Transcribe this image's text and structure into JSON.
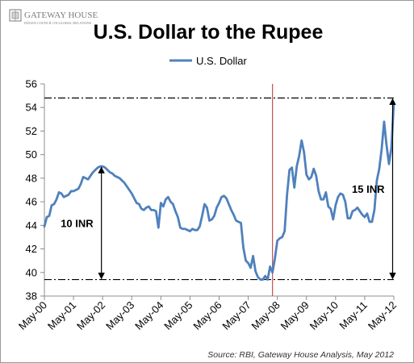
{
  "branding": {
    "logo_text": "GATEWAY HOUSE",
    "logo_subtext": "INDIAN COUNCIL ON GLOBAL RELATIONS"
  },
  "source_note": "Source: RBI, Gateway House Analysis, May 2012",
  "colors": {
    "series": "#4f81bd",
    "vline": "#c0504d",
    "reference": "#000000",
    "logo": "#7a7a7a"
  },
  "chart_data": {
    "type": "line",
    "title": "U.S. Dollar to the Rupee",
    "xlabel": "",
    "ylabel": "",
    "legend": {
      "position": "top",
      "entries": [
        "U.S. Dollar"
      ]
    },
    "grid": false,
    "ylim": [
      38,
      56
    ],
    "yticks": [
      38,
      40,
      42,
      44,
      46,
      48,
      50,
      52,
      54,
      56
    ],
    "xlim": [
      0,
      144
    ],
    "xticks": [
      {
        "m": 0,
        "label": "May-00"
      },
      {
        "m": 12,
        "label": "May-01"
      },
      {
        "m": 24,
        "label": "May-02"
      },
      {
        "m": 36,
        "label": "May-03"
      },
      {
        "m": 48,
        "label": "May-04"
      },
      {
        "m": 60,
        "label": "May-05"
      },
      {
        "m": 72,
        "label": "May-06"
      },
      {
        "m": 84,
        "label": "May-07"
      },
      {
        "m": 96,
        "label": "May-08"
      },
      {
        "m": 108,
        "label": "May-09"
      },
      {
        "m": 120,
        "label": "May-10"
      },
      {
        "m": 132,
        "label": "May-11"
      },
      {
        "m": 144,
        "label": "May-12"
      }
    ],
    "series": [
      {
        "name": "U.S. Dollar",
        "points": [
          [
            0,
            43.9
          ],
          [
            1,
            44.7
          ],
          [
            2,
            44.8
          ],
          [
            3,
            45.7
          ],
          [
            4,
            45.8
          ],
          [
            5,
            46.2
          ],
          [
            6,
            46.8
          ],
          [
            7,
            46.7
          ],
          [
            8,
            46.4
          ],
          [
            9,
            46.5
          ],
          [
            10,
            46.6
          ],
          [
            11,
            46.9
          ],
          [
            12,
            46.9
          ],
          [
            13,
            47.0
          ],
          [
            14,
            47.1
          ],
          [
            15,
            47.5
          ],
          [
            16,
            48.1
          ],
          [
            17,
            48.0
          ],
          [
            18,
            47.9
          ],
          [
            19,
            48.2
          ],
          [
            20,
            48.5
          ],
          [
            21,
            48.7
          ],
          [
            22,
            48.9
          ],
          [
            23,
            49.0
          ],
          [
            24,
            49.0
          ],
          [
            25,
            48.9
          ],
          [
            26,
            48.7
          ],
          [
            27,
            48.5
          ],
          [
            28,
            48.4
          ],
          [
            29,
            48.2
          ],
          [
            30,
            48.1
          ],
          [
            31,
            48.0
          ],
          [
            32,
            47.8
          ],
          [
            33,
            47.6
          ],
          [
            34,
            47.3
          ],
          [
            35,
            47.0
          ],
          [
            36,
            46.7
          ],
          [
            37,
            46.3
          ],
          [
            38,
            45.9
          ],
          [
            39,
            45.8
          ],
          [
            40,
            45.4
          ],
          [
            41,
            45.3
          ],
          [
            42,
            45.5
          ],
          [
            43,
            45.6
          ],
          [
            44,
            45.3
          ],
          [
            45,
            45.3
          ],
          [
            46,
            45.2
          ],
          [
            47,
            43.8
          ],
          [
            48,
            45.9
          ],
          [
            49,
            45.6
          ],
          [
            50,
            46.2
          ],
          [
            51,
            46.4
          ],
          [
            52,
            46.0
          ],
          [
            53,
            45.8
          ],
          [
            54,
            45.2
          ],
          [
            55,
            44.7
          ],
          [
            56,
            43.8
          ],
          [
            57,
            43.7
          ],
          [
            58,
            43.7
          ],
          [
            59,
            43.6
          ],
          [
            60,
            43.5
          ],
          [
            61,
            43.7
          ],
          [
            62,
            43.6
          ],
          [
            63,
            43.6
          ],
          [
            64,
            43.9
          ],
          [
            65,
            44.8
          ],
          [
            66,
            45.8
          ],
          [
            67,
            45.5
          ],
          [
            68,
            44.4
          ],
          [
            69,
            44.5
          ],
          [
            70,
            44.8
          ],
          [
            71,
            45.5
          ],
          [
            72,
            45.9
          ],
          [
            73,
            46.4
          ],
          [
            74,
            46.5
          ],
          [
            75,
            46.3
          ],
          [
            76,
            45.8
          ],
          [
            77,
            45.3
          ],
          [
            78,
            44.9
          ],
          [
            79,
            44.4
          ],
          [
            80,
            44.3
          ],
          [
            81,
            44.2
          ],
          [
            82,
            42.1
          ],
          [
            83,
            41.0
          ],
          [
            84,
            40.8
          ],
          [
            85,
            40.4
          ],
          [
            86,
            41.4
          ],
          [
            87,
            40.1
          ],
          [
            88,
            39.6
          ],
          [
            89,
            39.4
          ],
          [
            90,
            39.4
          ],
          [
            91,
            39.7
          ],
          [
            92,
            39.4
          ],
          [
            93,
            40.5
          ],
          [
            94,
            40.0
          ],
          [
            95,
            41.2
          ],
          [
            96,
            42.7
          ],
          [
            97,
            42.9
          ],
          [
            98,
            43.0
          ],
          [
            99,
            43.5
          ],
          [
            100,
            46.6
          ],
          [
            101,
            48.7
          ],
          [
            102,
            48.9
          ],
          [
            103,
            47.2
          ],
          [
            104,
            49.0
          ],
          [
            105,
            49.9
          ],
          [
            106,
            51.2
          ],
          [
            107,
            50.2
          ],
          [
            108,
            48.3
          ],
          [
            109,
            47.9
          ],
          [
            110,
            48.1
          ],
          [
            111,
            48.8
          ],
          [
            112,
            48.2
          ],
          [
            113,
            46.9
          ],
          [
            114,
            46.2
          ],
          [
            115,
            46.2
          ],
          [
            116,
            46.8
          ],
          [
            117,
            45.6
          ],
          [
            118,
            45.4
          ],
          [
            119,
            44.5
          ],
          [
            120,
            45.7
          ],
          [
            121,
            46.4
          ],
          [
            122,
            46.7
          ],
          [
            123,
            46.6
          ],
          [
            124,
            46.0
          ],
          [
            125,
            44.6
          ],
          [
            126,
            44.6
          ],
          [
            127,
            45.2
          ],
          [
            128,
            45.3
          ],
          [
            129,
            45.5
          ],
          [
            130,
            45.2
          ],
          [
            131,
            44.9
          ],
          [
            132,
            44.7
          ],
          [
            133,
            45.0
          ],
          [
            134,
            44.3
          ],
          [
            135,
            44.3
          ],
          [
            136,
            45.3
          ],
          [
            137,
            47.8
          ],
          [
            138,
            48.8
          ],
          [
            139,
            50.5
          ],
          [
            140,
            52.8
          ],
          [
            141,
            50.8
          ],
          [
            142,
            49.2
          ],
          [
            143,
            50.6
          ],
          [
            144,
            54.4
          ]
        ]
      }
    ],
    "vertical_marker": {
      "m": 94
    },
    "reference_lines": [
      {
        "y": 54.8,
        "from": 0,
        "to": 144
      },
      {
        "y": 39.4,
        "from": 0,
        "to": 144
      }
    ],
    "annotations": [
      {
        "label": "10 INR",
        "arrow_x": 23.5,
        "from_y": 39.4,
        "to_y": 49.0,
        "label_side": "left"
      },
      {
        "label": "15 INR",
        "arrow_x": 143.5,
        "from_y": 39.4,
        "to_y": 54.8,
        "label_side": "left"
      }
    ]
  }
}
